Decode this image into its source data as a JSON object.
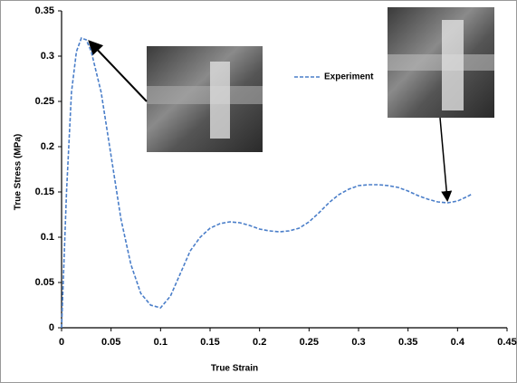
{
  "chart_data": {
    "type": "line",
    "x_label": "True Strain",
    "y_label": "True Stress (MPa)",
    "xlim": [
      0,
      0.45
    ],
    "xticks": [
      0,
      0.05,
      0.1,
      0.15,
      0.2,
      0.25,
      0.3,
      0.35,
      0.4,
      0.45
    ],
    "ylim": [
      0,
      0.35
    ],
    "yticks": [
      0,
      0.05,
      0.1,
      0.15,
      0.2,
      0.25,
      0.3,
      0.35
    ],
    "grid": false,
    "legend": "upper-center",
    "series": [
      {
        "name": "Experiment",
        "color": "#4a7ec9",
        "x": [
          0,
          0.005,
          0.01,
          0.015,
          0.02,
          0.025,
          0.03,
          0.04,
          0.05,
          0.06,
          0.07,
          0.08,
          0.09,
          0.1,
          0.11,
          0.12,
          0.13,
          0.14,
          0.15,
          0.16,
          0.17,
          0.18,
          0.19,
          0.2,
          0.21,
          0.22,
          0.23,
          0.24,
          0.25,
          0.26,
          0.27,
          0.28,
          0.29,
          0.3,
          0.31,
          0.32,
          0.33,
          0.34,
          0.35,
          0.36,
          0.37,
          0.38,
          0.39,
          0.4,
          0.41,
          0.415
        ],
        "values": [
          0,
          0.15,
          0.26,
          0.305,
          0.32,
          0.318,
          0.305,
          0.26,
          0.19,
          0.12,
          0.07,
          0.038,
          0.025,
          0.022,
          0.035,
          0.06,
          0.085,
          0.1,
          0.11,
          0.115,
          0.117,
          0.116,
          0.113,
          0.109,
          0.107,
          0.106,
          0.107,
          0.11,
          0.117,
          0.127,
          0.138,
          0.147,
          0.153,
          0.157,
          0.158,
          0.158,
          0.157,
          0.155,
          0.151,
          0.146,
          0.142,
          0.139,
          0.138,
          0.14,
          0.145,
          0.148
        ]
      }
    ]
  }
}
